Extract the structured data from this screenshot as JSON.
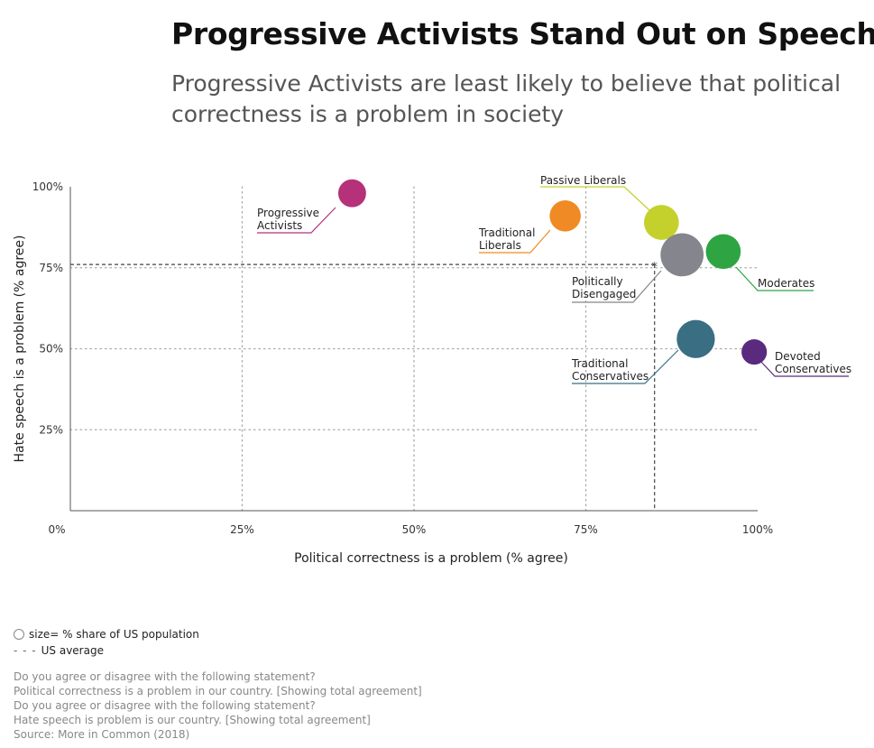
{
  "title": "Progressive Activists Stand Out on Speech",
  "subtitle": "Progressive Activists are least likely to believe that political correctness is a problem in society",
  "chart_data": {
    "type": "scatter",
    "title": "Progressive Activists Stand Out on Speech",
    "xlabel": "Political correctness is a problem (% agree)",
    "ylabel": "Hate speech is a problem (% agree)",
    "xlim": [
      0,
      100
    ],
    "ylim": [
      0,
      100
    ],
    "xticks": [
      "0%",
      "25%",
      "50%",
      "75%",
      "100%"
    ],
    "yticks": [
      "25%",
      "50%",
      "75%",
      "100%"
    ],
    "grid": true,
    "average": {
      "x": 85,
      "y": 76,
      "label": "US average"
    },
    "series": [
      {
        "name": "Progressive Activists",
        "x": 41,
        "y": 98,
        "size": 8,
        "color": "#b5317a"
      },
      {
        "name": "Traditional Liberals",
        "x": 72,
        "y": 91,
        "size": 11,
        "color": "#f08a24"
      },
      {
        "name": "Passive Liberals",
        "x": 86,
        "y": 89,
        "size": 15,
        "color": "#c4d12d"
      },
      {
        "name": "Politically Disengaged",
        "x": 89,
        "y": 79,
        "size": 26,
        "color": "#85858d"
      },
      {
        "name": "Moderates",
        "x": 95,
        "y": 80,
        "size": 15,
        "color": "#2ea443"
      },
      {
        "name": "Traditional Conservatives",
        "x": 91,
        "y": 53,
        "size": 19,
        "color": "#3a6e83"
      },
      {
        "name": "Devoted Conservatives",
        "x": 99.5,
        "y": 49,
        "size": 6,
        "color": "#5a2a7e"
      }
    ]
  },
  "legend": {
    "size_note": "size= % share of US population",
    "avg_note": "US average",
    "dash_glyph": "- - -"
  },
  "notes": [
    "Do you agree or disagree with the following statement?",
    "Political correctness is a problem in our country. [Showing total agreement]",
    "Do you agree or disagree with the following statement?",
    "Hate speech is problem is our country. [Showing total agreement]",
    "Source: More in Common (2018)"
  ]
}
